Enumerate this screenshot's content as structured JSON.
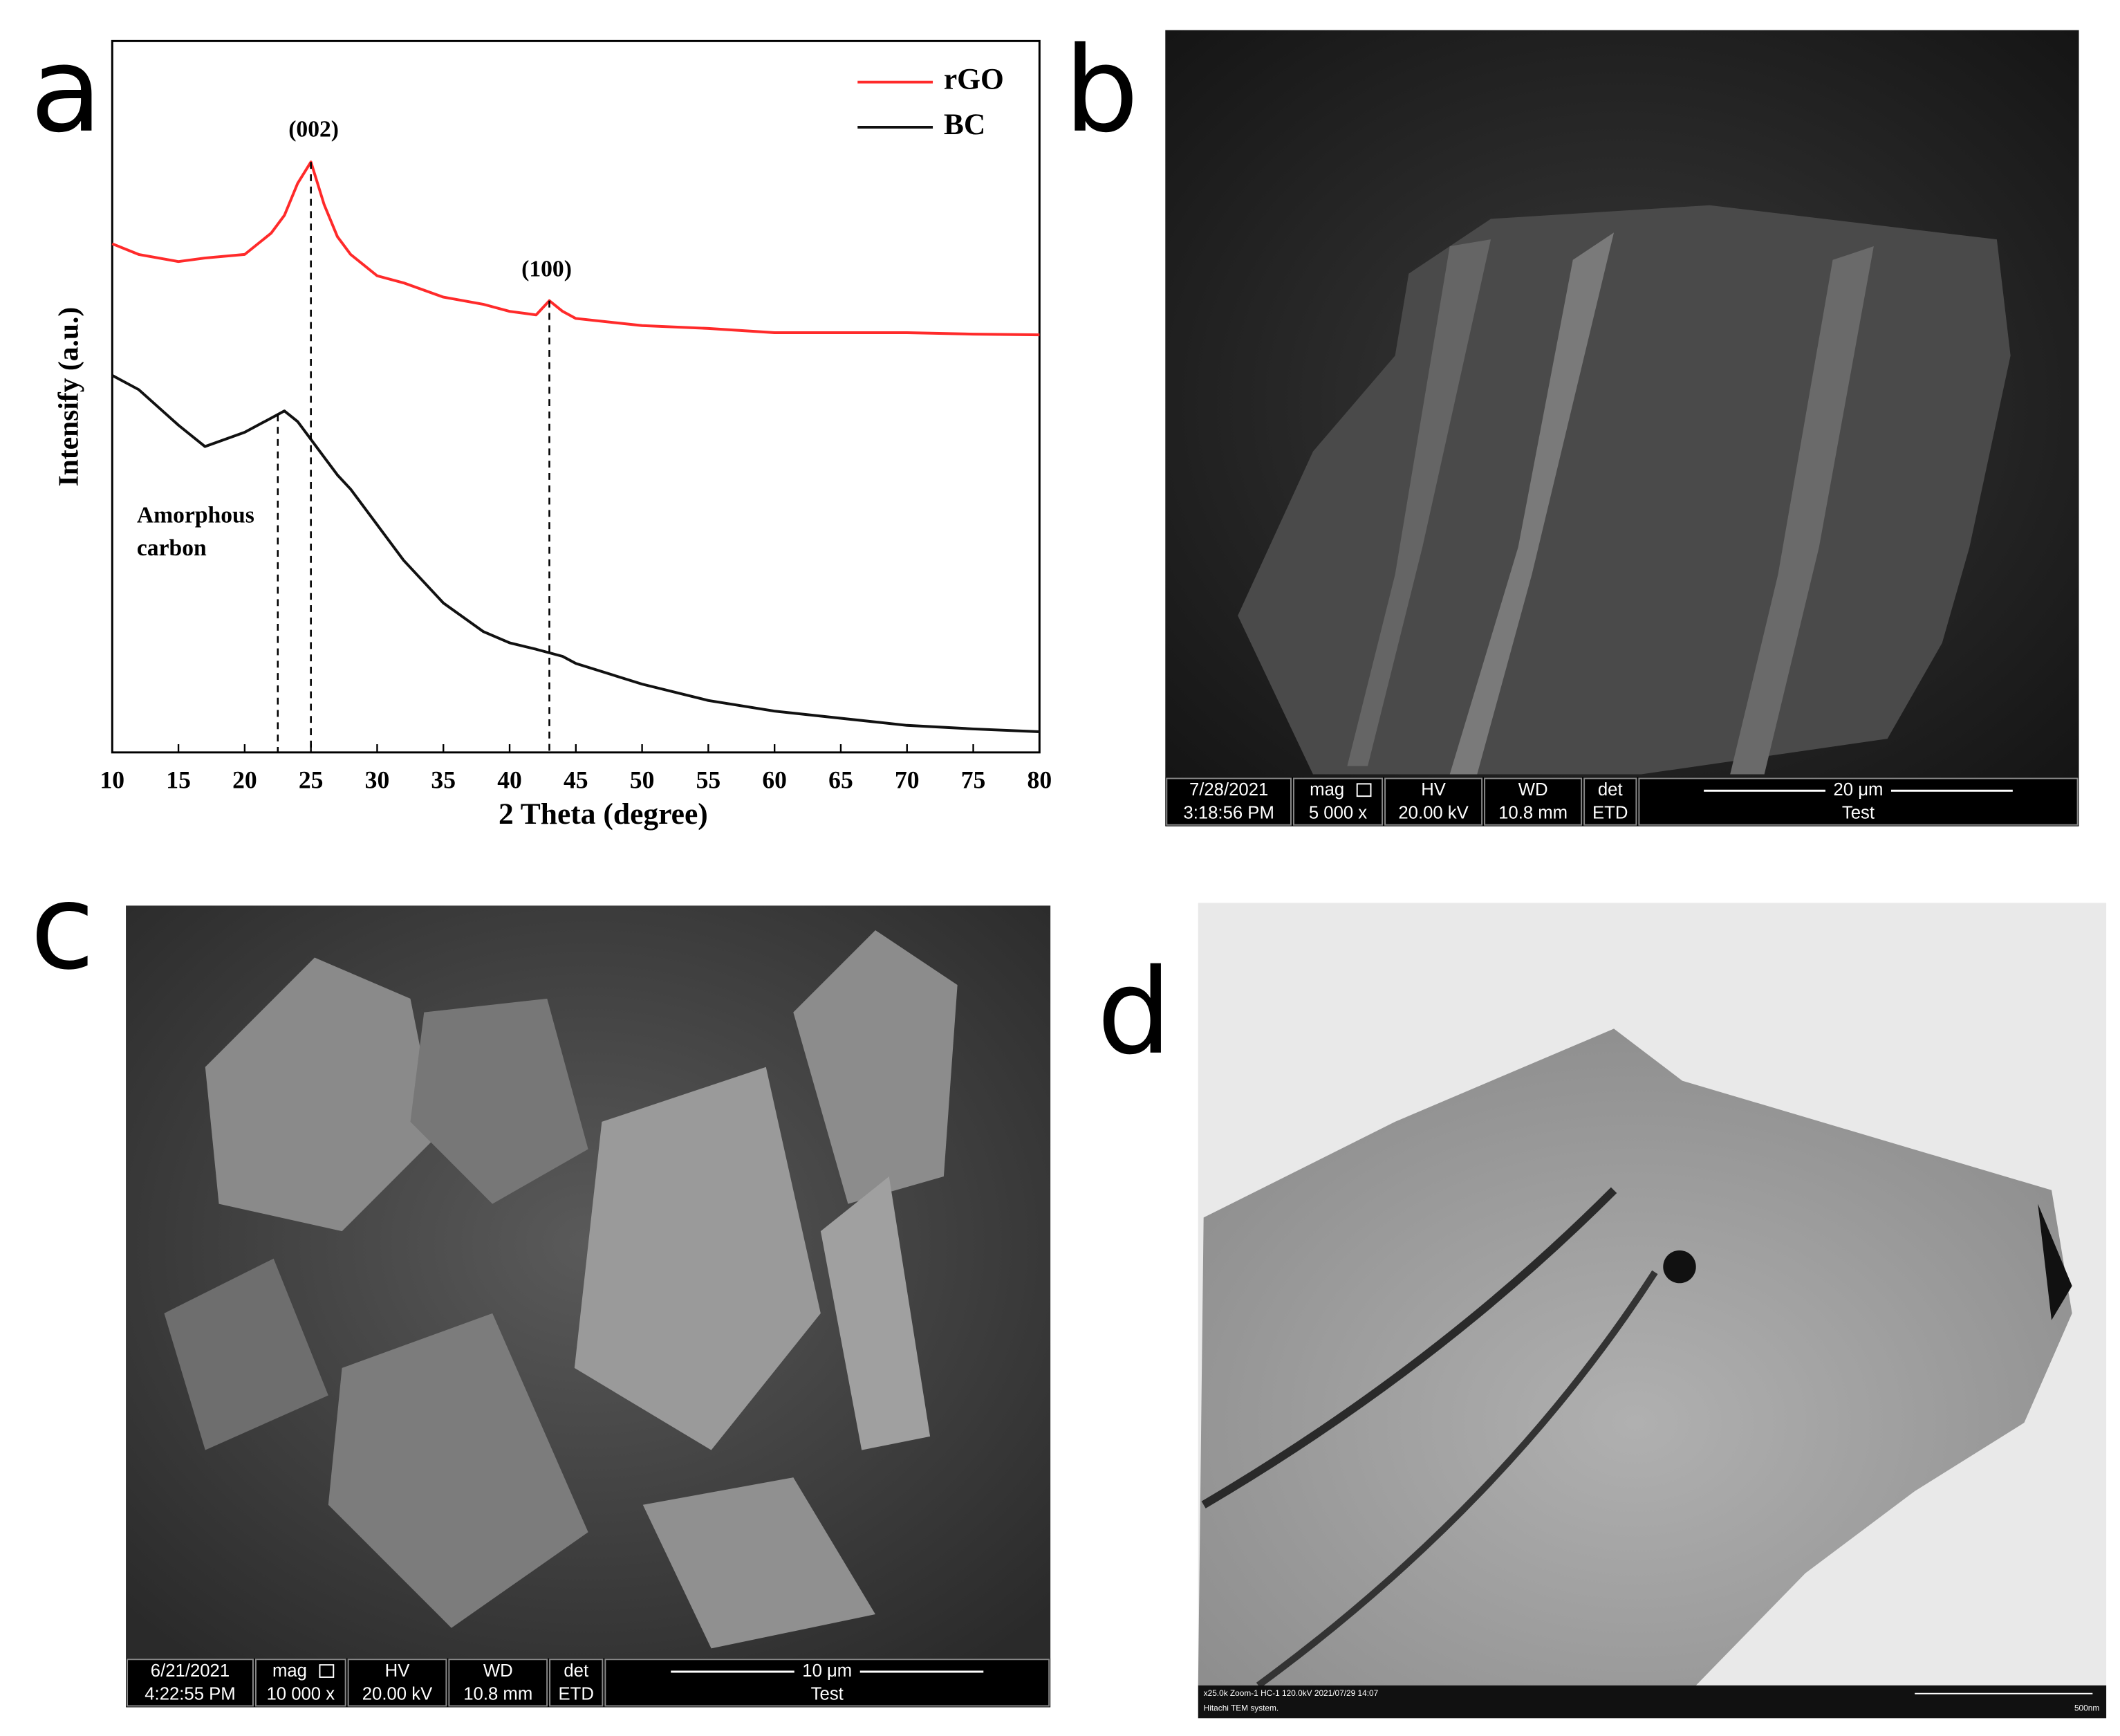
{
  "chart_data": {
    "type": "line",
    "xlabel": "2 Theta (degree)",
    "ylabel": "Intensify (a.u.)",
    "x": [
      10,
      12,
      15,
      17,
      20,
      22,
      23,
      24,
      25,
      26,
      27,
      28,
      30,
      32,
      35,
      38,
      40,
      42,
      43,
      44,
      45,
      50,
      55,
      60,
      65,
      70,
      75,
      80
    ],
    "series": [
      {
        "name": "rGO",
        "color": "#ff2a2a",
        "values": [
          71.5,
          70,
          69,
          69.5,
          70,
          73,
          75.5,
          80,
          83,
          77,
          72.5,
          70,
          67,
          66,
          64,
          63,
          62,
          61.5,
          63.5,
          62,
          61,
          60,
          59.6,
          59,
          59,
          59,
          58.8,
          58.7
        ]
      },
      {
        "name": "BC",
        "color": "#111111",
        "values": [
          53,
          51,
          46,
          43,
          45,
          47,
          48,
          46.5,
          44,
          41.5,
          39,
          37,
          32,
          27,
          21,
          17,
          15.4,
          14.5,
          14,
          13.5,
          12.5,
          9.6,
          7.3,
          5.8,
          4.8,
          3.8,
          3.3,
          2.9
        ]
      }
    ],
    "xlim": [
      10,
      80
    ],
    "xticks": [
      10,
      15,
      20,
      25,
      30,
      35,
      40,
      45,
      50,
      55,
      60,
      65,
      70,
      75,
      80
    ],
    "ylim": [
      0,
      100
    ],
    "reference_lines": [
      22.5,
      25,
      43
    ],
    "annotations": [
      "(002)",
      "(100)",
      "Amorphous",
      "carbon"
    ],
    "legend": "upper right"
  },
  "panels": {
    "a": {
      "label": "a"
    },
    "b": {
      "label": "b",
      "info_bar": {
        "cells": [
          [
            "7/28/2021",
            "3:18:56 PM"
          ],
          [
            "mag",
            "5 000 x"
          ],
          [
            "HV",
            "20.00 kV"
          ],
          [
            "WD",
            "10.8 mm"
          ],
          [
            "det",
            "ETD"
          ]
        ],
        "scale": "20 μm",
        "footer": "Test"
      }
    },
    "c": {
      "label": "c",
      "info_bar": {
        "cells": [
          [
            "6/21/2021",
            "4:22:55 PM"
          ],
          [
            "mag",
            "10 000 x"
          ],
          [
            "HV",
            "20.00 kV"
          ],
          [
            "WD",
            "10.8 mm"
          ],
          [
            "det",
            "ETD"
          ]
        ],
        "scale": "10 μm",
        "footer": "Test"
      }
    },
    "d": {
      "label": "d",
      "info_bar": {
        "line1": "x25.0k Zoom-1 HC-1 120.0kV 2021/07/29 14:07",
        "line2": "Hitachi TEM system.",
        "scale": "500nm"
      }
    }
  }
}
